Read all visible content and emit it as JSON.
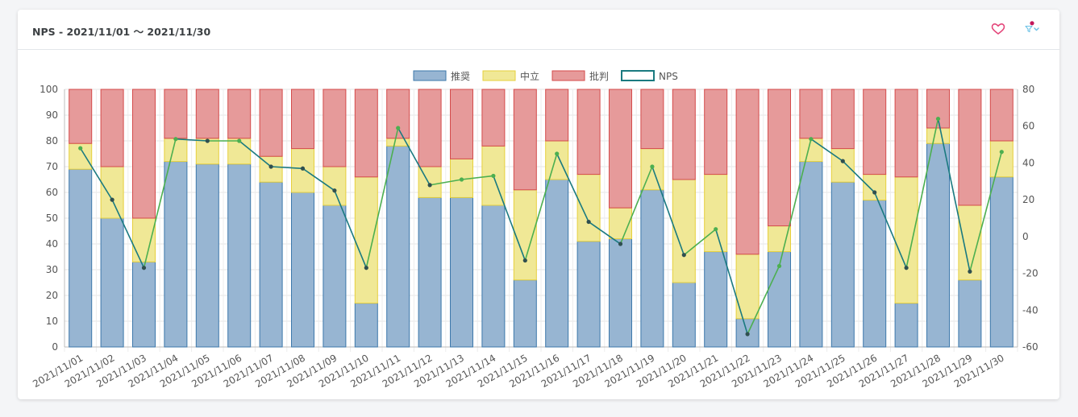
{
  "header": {
    "title": "NPS - 2021/11/01 〜 2021/11/30",
    "favorite_icon": "heart-icon",
    "filter_icon": "filter-icon",
    "colors": {
      "heart": "#e4467a",
      "filter": "#6cc2e6",
      "badge": "#c2185b"
    }
  },
  "chart_data": {
    "type": "bar",
    "stacked": true,
    "categories": [
      "2021/11/01",
      "2021/11/02",
      "2021/11/03",
      "2021/11/04",
      "2021/11/05",
      "2021/11/06",
      "2021/11/07",
      "2021/11/08",
      "2021/11/09",
      "2021/11/10",
      "2021/11/11",
      "2021/11/12",
      "2021/11/13",
      "2021/11/14",
      "2021/11/15",
      "2021/11/16",
      "2021/11/17",
      "2021/11/18",
      "2021/11/19",
      "2021/11/20",
      "2021/11/21",
      "2021/11/22",
      "2021/11/23",
      "2021/11/24",
      "2021/11/25",
      "2021/11/26",
      "2021/11/27",
      "2021/11/28",
      "2021/11/29",
      "2021/11/30"
    ],
    "series": [
      {
        "name": "推奨",
        "type": "bar",
        "axis": "left",
        "fill": "#97b5d2",
        "stroke": "#3d78ab",
        "values": [
          69,
          50,
          33,
          72,
          71,
          71,
          64,
          60,
          55,
          17,
          78,
          58,
          58,
          55,
          26,
          65,
          41,
          42,
          61,
          25,
          37,
          11,
          37,
          72,
          64,
          57,
          17,
          79,
          26,
          66
        ]
      },
      {
        "name": "中立",
        "type": "bar",
        "axis": "left",
        "fill": "#f0e896",
        "stroke": "#e6cf3c",
        "values": [
          10,
          20,
          17,
          9,
          10,
          10,
          10,
          17,
          15,
          49,
          3,
          12,
          15,
          23,
          35,
          15,
          26,
          12,
          16,
          40,
          30,
          25,
          10,
          9,
          13,
          10,
          49,
          6,
          29,
          14
        ]
      },
      {
        "name": "批判",
        "type": "bar",
        "axis": "left",
        "fill": "#e69a9a",
        "stroke": "#d44b4b",
        "values": [
          21,
          30,
          50,
          19,
          19,
          19,
          26,
          23,
          30,
          34,
          19,
          30,
          27,
          22,
          39,
          20,
          33,
          46,
          23,
          35,
          33,
          64,
          53,
          19,
          23,
          33,
          34,
          15,
          45,
          20
        ]
      },
      {
        "name": "NPS",
        "type": "line",
        "axis": "right",
        "legend_stroke": "#1a7a80",
        "values": [
          48,
          20,
          -17,
          53,
          52,
          52,
          38,
          37,
          25,
          -17,
          59,
          28,
          31,
          33,
          -13,
          45,
          8,
          -4,
          38,
          -10,
          4,
          -53,
          -16,
          53,
          41,
          24,
          -17,
          64,
          -19,
          46
        ]
      }
    ],
    "y_left": {
      "min": 0,
      "max": 100,
      "step": 10
    },
    "y_right": {
      "min": -60,
      "max": 80,
      "step": 20
    },
    "legend_position": "top",
    "grid": true
  }
}
